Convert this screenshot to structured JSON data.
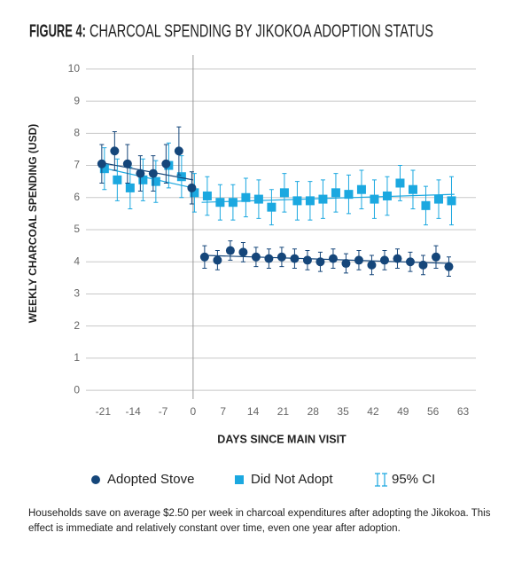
{
  "chart_data": {
    "type": "scatter",
    "title_label": "FIGURE 4:",
    "title": "CHARCOAL SPENDING BY JIKOKOA ADOPTION STATUS",
    "x_label": "DAYS SINCE MAIN VISIT",
    "y_label": "WEEKLY CHARCOAL SPENDING (USD)",
    "xlim": [
      -25,
      66
    ],
    "ylim": [
      -0.3,
      10.3
    ],
    "xticks": [
      -21,
      -14,
      -7,
      0,
      7,
      14,
      21,
      28,
      35,
      42,
      49,
      56,
      63
    ],
    "yticks": [
      0,
      1,
      2,
      3,
      4,
      5,
      6,
      7,
      8,
      9,
      10
    ],
    "grid": true,
    "vline": 0,
    "series": [
      {
        "name": "Did Not Adopt",
        "color": "#1ba8e0",
        "marker": "square",
        "x": [
          -21,
          -18,
          -15,
          -12,
          -9,
          -6,
          -3,
          0,
          3,
          6,
          9,
          12,
          15,
          18,
          21,
          24,
          27,
          30,
          33,
          36,
          39,
          42,
          45,
          48,
          51,
          54,
          57,
          60
        ],
        "values": [
          6.9,
          6.55,
          6.3,
          6.55,
          6.5,
          7.0,
          6.65,
          6.15,
          6.05,
          5.85,
          5.85,
          6.0,
          5.95,
          5.7,
          6.15,
          5.9,
          5.9,
          5.95,
          6.15,
          6.1,
          6.25,
          5.95,
          6.05,
          6.45,
          6.25,
          5.75,
          5.95,
          5.9
        ],
        "errors": [
          0.65,
          0.65,
          0.65,
          0.65,
          0.65,
          0.7,
          0.65,
          0.6,
          0.6,
          0.55,
          0.55,
          0.6,
          0.6,
          0.55,
          0.6,
          0.6,
          0.6,
          0.6,
          0.6,
          0.6,
          0.6,
          0.6,
          0.6,
          0.55,
          0.6,
          0.6,
          0.6,
          0.75
        ],
        "fits": [
          {
            "x": [
              -22,
              0
            ],
            "values": [
              6.95,
              6.3
            ]
          },
          {
            "x": [
              2,
              61
            ],
            "values": [
              5.85,
              6.1
            ]
          }
        ]
      },
      {
        "name": "Adopted Stove",
        "color": "#15467a",
        "marker": "circle",
        "x": [
          -21,
          -18,
          -15,
          -12,
          -9,
          -6,
          -3,
          0,
          3,
          6,
          9,
          12,
          15,
          18,
          21,
          24,
          27,
          30,
          33,
          36,
          39,
          42,
          45,
          48,
          51,
          54,
          57,
          60
        ],
        "values": [
          7.05,
          7.45,
          7.05,
          6.75,
          6.75,
          7.05,
          7.45,
          6.3,
          4.15,
          4.05,
          4.35,
          4.3,
          4.15,
          4.1,
          4.15,
          4.1,
          4.05,
          4.0,
          4.1,
          3.95,
          4.05,
          3.9,
          4.05,
          4.1,
          4.0,
          3.9,
          4.15,
          3.85
        ],
        "errors": [
          0.6,
          0.6,
          0.6,
          0.55,
          0.55,
          0.6,
          0.75,
          0.5,
          0.35,
          0.3,
          0.3,
          0.3,
          0.3,
          0.3,
          0.3,
          0.3,
          0.3,
          0.3,
          0.3,
          0.3,
          0.3,
          0.3,
          0.3,
          0.3,
          0.3,
          0.3,
          0.35,
          0.3
        ],
        "fits": [
          {
            "x": [
              -22,
              0
            ],
            "values": [
              7.1,
              6.55
            ]
          },
          {
            "x": [
              3,
              60
            ],
            "values": [
              4.2,
              3.95
            ]
          }
        ]
      }
    ],
    "legend_order": [
      1,
      0
    ],
    "ci_label": "95% CI",
    "note": "Households save on average $2.50 per week in charcoal expenditures after adopting the Jikokoa. This effect is immediate and relatively constant over time, even one year after adoption."
  }
}
